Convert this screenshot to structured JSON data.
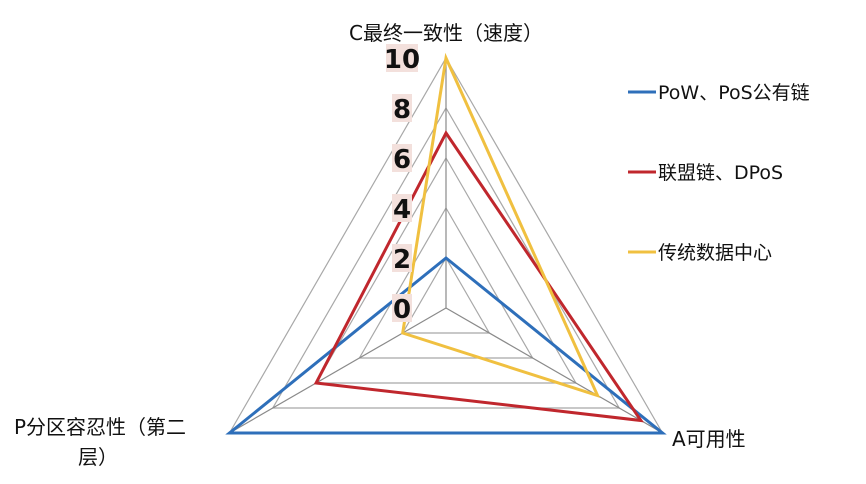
{
  "chart_data": {
    "type": "radar",
    "title": "",
    "axes": [
      "C最终一致性（速度）",
      "A可用性",
      "P分区容忍性（第二层）"
    ],
    "axis_label_lines": {
      "C": [
        "C最终一致性（速度）"
      ],
      "A": [
        "A可用性"
      ],
      "P": [
        "P分区容忍性（第二",
        "层）"
      ]
    },
    "range": [
      0,
      10
    ],
    "ticks": [
      "0",
      "2",
      "4",
      "6",
      "8",
      "10"
    ],
    "tick_values": [
      0,
      2,
      4,
      6,
      8,
      10
    ],
    "grid": true,
    "legend_position": "right",
    "series": [
      {
        "name": "PoW、PoS公有链",
        "values": [
          2,
          10,
          10
        ],
        "color": "#2e6fba"
      },
      {
        "name": "联盟链、DPoS",
        "values": [
          7,
          9,
          6
        ],
        "color": "#c0272d"
      },
      {
        "name": "传统数据中心",
        "values": [
          10,
          7,
          2
        ],
        "color": "#f0c040"
      }
    ],
    "tick_label_background": "#f3e0dc"
  }
}
